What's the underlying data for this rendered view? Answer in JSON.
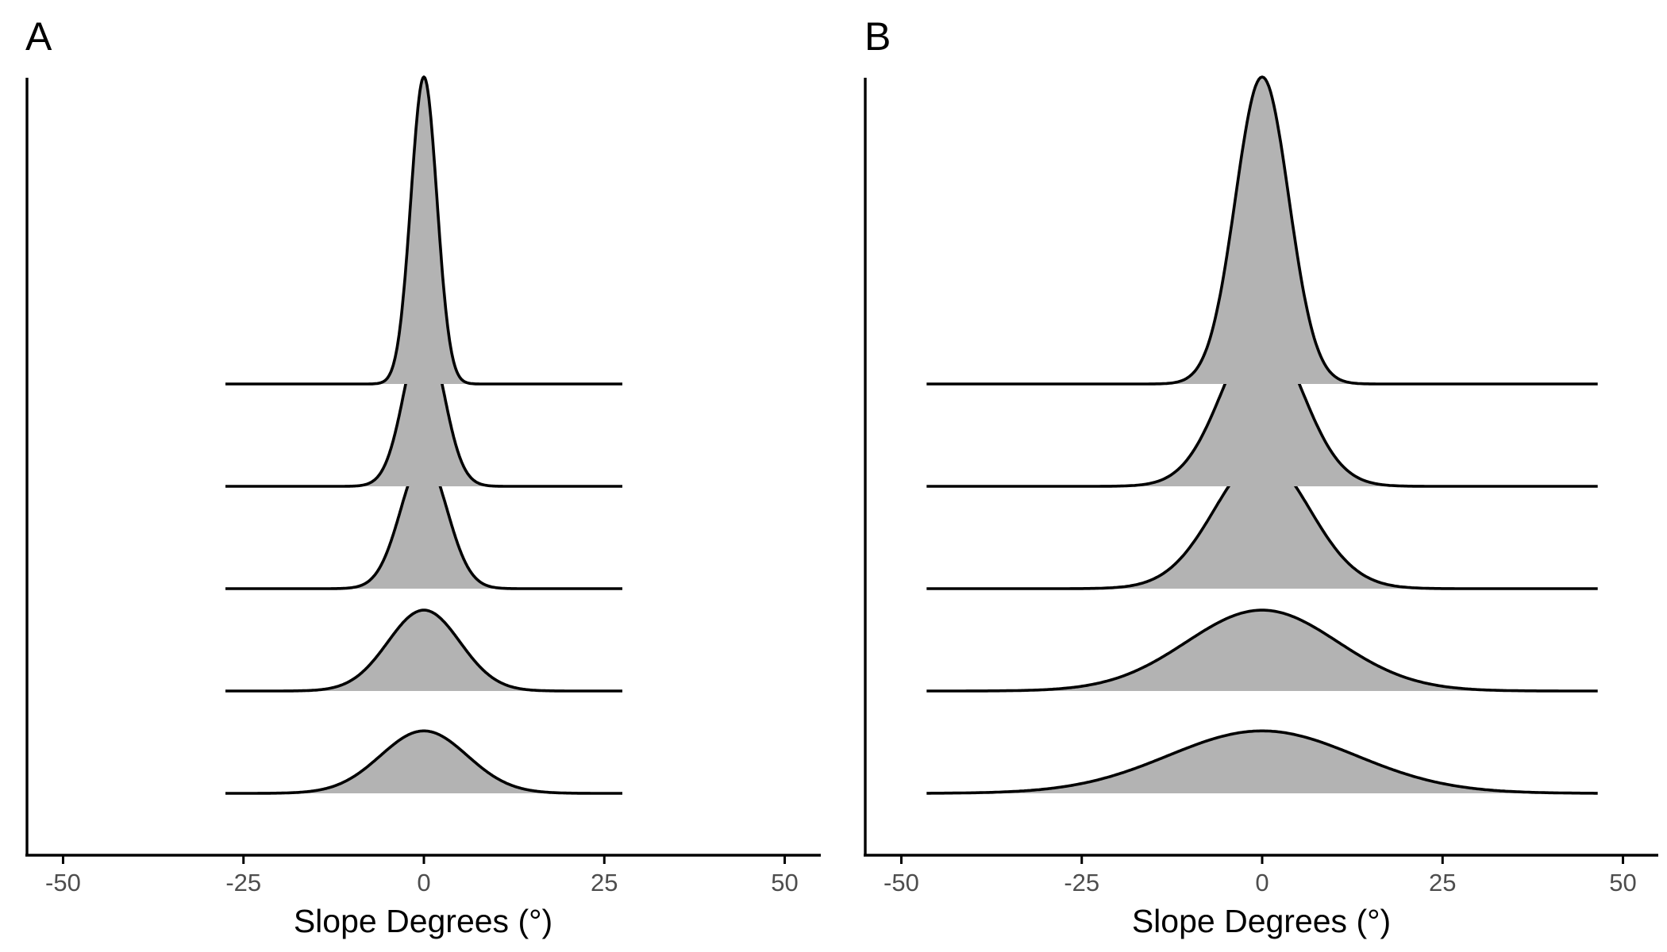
{
  "chart_data": [
    {
      "type": "ridgeline",
      "panel_tag": "A",
      "xlabel": "Slope Degrees (°)",
      "xlim": [
        -55,
        55
      ],
      "x_ticks": [
        -50,
        -25,
        0,
        25,
        50
      ],
      "x_tick_labels": [
        "-50",
        "-25",
        "0",
        "25",
        "50"
      ],
      "grid": false,
      "fill_color": "#b3b3b3",
      "line_color": "#000000",
      "x_range": [
        -27.5,
        27.5
      ],
      "ridges": [
        {
          "center": 0,
          "sd": 1.8,
          "peak": 3.0
        },
        {
          "center": 0,
          "sd": 2.7,
          "peak": 1.55
        },
        {
          "center": 0,
          "sd": 3.2,
          "peak": 1.28
        },
        {
          "center": 0,
          "sd": 5.0,
          "peak": 0.79
        },
        {
          "center": 0,
          "sd": 6.0,
          "peak": 0.61
        }
      ]
    },
    {
      "type": "ridgeline",
      "panel_tag": "B",
      "xlabel": "Slope Degrees (°)",
      "xlim": [
        -55,
        55
      ],
      "x_ticks": [
        -50,
        -25,
        0,
        25,
        50
      ],
      "x_tick_labels": [
        "-50",
        "-25",
        "0",
        "25",
        "50"
      ],
      "grid": false,
      "fill_color": "#b3b3b3",
      "line_color": "#000000",
      "x_range": [
        -46.5,
        46.5
      ],
      "ridges": [
        {
          "center": 0,
          "sd": 3.7,
          "peak": 3.0
        },
        {
          "center": 0,
          "sd": 5.5,
          "peak": 1.55
        },
        {
          "center": 0,
          "sd": 6.6,
          "peak": 1.28
        },
        {
          "center": 0,
          "sd": 10.5,
          "peak": 0.79
        },
        {
          "center": 0,
          "sd": 13.0,
          "peak": 0.61
        }
      ]
    }
  ]
}
